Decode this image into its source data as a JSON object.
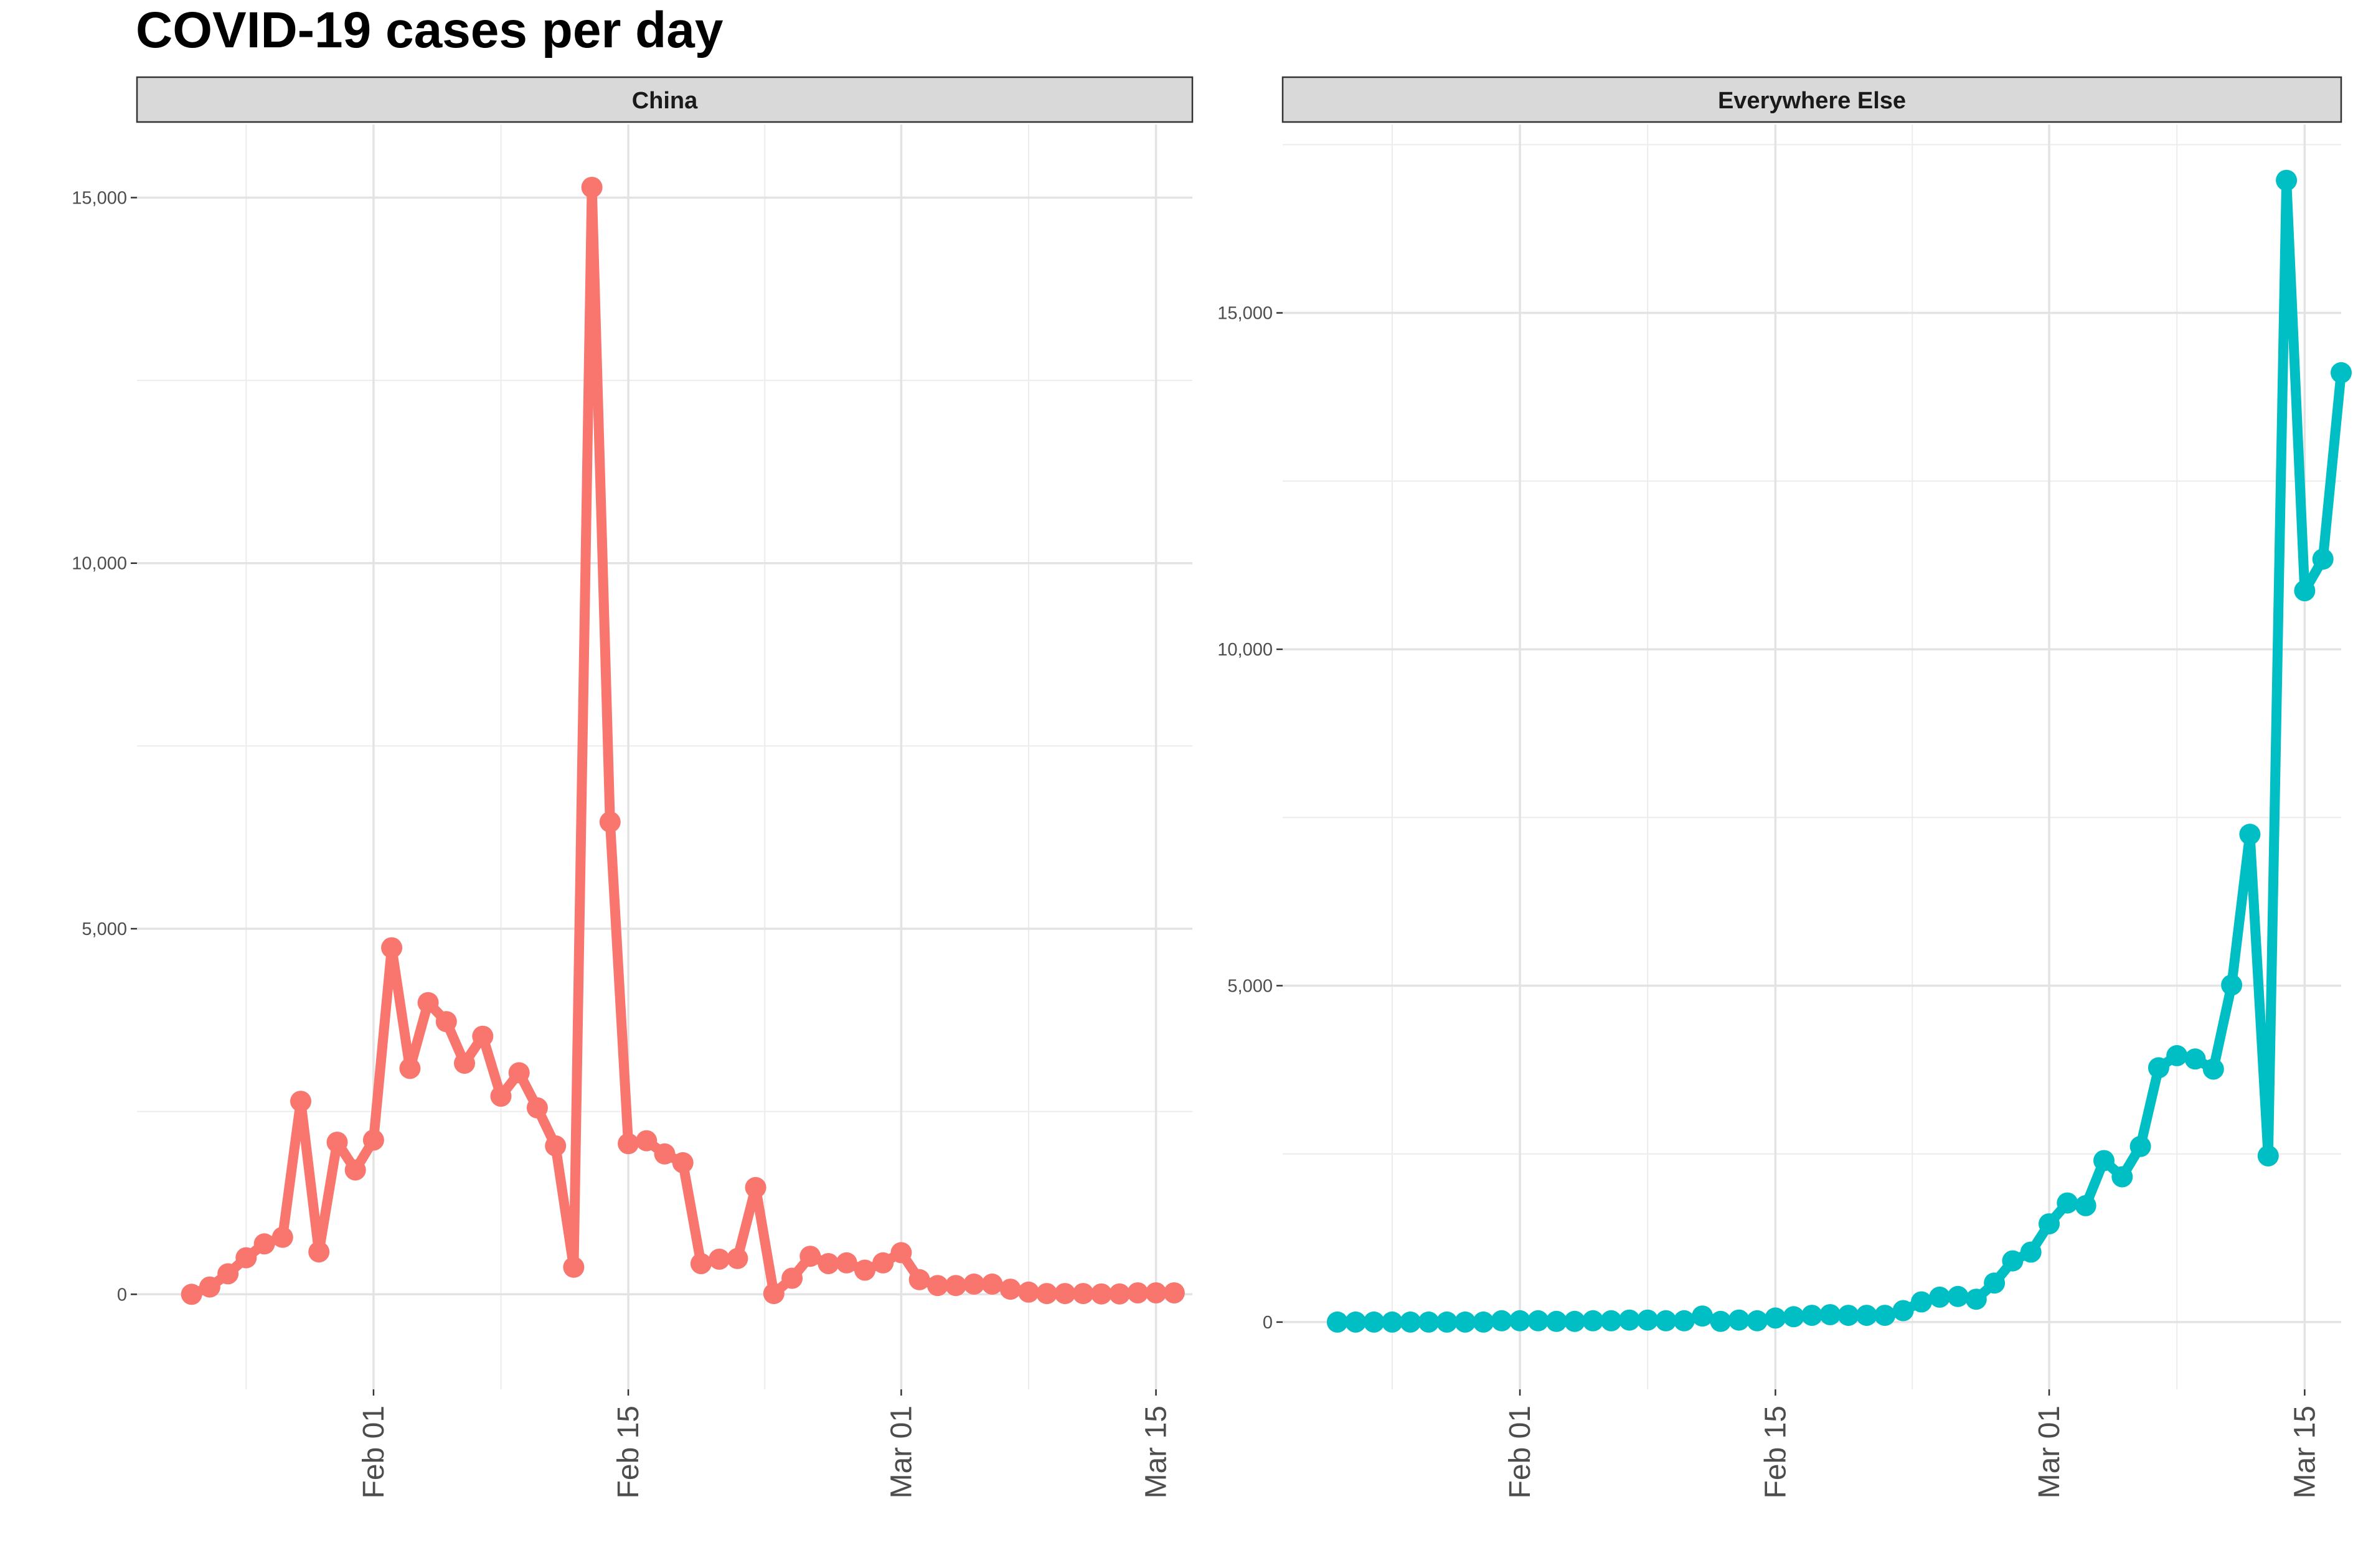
{
  "title": "COVID-19 cases per day",
  "chart_data": {
    "type": "line",
    "markers": true,
    "grid": true,
    "legend": "none",
    "xlabel": "",
    "ylabel": "",
    "x_tick_labels": [
      "Feb 01",
      "Feb 15",
      "Mar 01",
      "Mar 15"
    ],
    "x_tick_dates": [
      "2020-02-01",
      "2020-02-15",
      "2020-03-01",
      "2020-03-15"
    ],
    "xlim": [
      "2020-01-19",
      "2020-03-17"
    ],
    "panels": [
      {
        "strip": "China",
        "color": "#F8766D",
        "ylim": [
          -1300,
          16000
        ],
        "y_ticks": [
          0,
          5000,
          10000,
          15000
        ],
        "y_tick_labels": [
          "0",
          "5,000",
          "10,000",
          "15,000"
        ],
        "x_start": "2020-01-22",
        "values": [
          0,
          100,
          280,
          500,
          690,
          780,
          2640,
          580,
          2080,
          1700,
          2110,
          4740,
          3090,
          3990,
          3730,
          3160,
          3530,
          2710,
          3030,
          2550,
          2030,
          370,
          15140,
          6460,
          2060,
          2100,
          1920,
          1800,
          420,
          480,
          490,
          1460,
          10,
          220,
          520,
          420,
          430,
          330,
          430,
          570,
          200,
          120,
          120,
          140,
          140,
          70,
          30,
          10,
          10,
          10,
          5,
          5,
          20,
          20,
          20
        ]
      },
      {
        "strip": "Everywhere Else",
        "color": "#00BFC4",
        "ylim": [
          -1000,
          17800
        ],
        "y_ticks": [
          0,
          5000,
          10000,
          15000
        ],
        "y_tick_labels": [
          "0",
          "5,000",
          "10,000",
          "15,000"
        ],
        "x_start": "2020-01-22",
        "values": [
          0,
          0,
          0,
          0,
          0,
          0,
          0,
          0,
          0,
          20,
          20,
          20,
          10,
          10,
          20,
          20,
          30,
          30,
          20,
          20,
          90,
          10,
          30,
          20,
          60,
          80,
          100,
          110,
          100,
          100,
          100,
          170,
          300,
          370,
          380,
          340,
          580,
          910,
          1040,
          1460,
          1770,
          1730,
          2400,
          2160,
          2610,
          3780,
          3960,
          3910,
          3760,
          5010,
          7250,
          2470,
          16970,
          10870,
          11340,
          14110
        ]
      }
    ]
  }
}
